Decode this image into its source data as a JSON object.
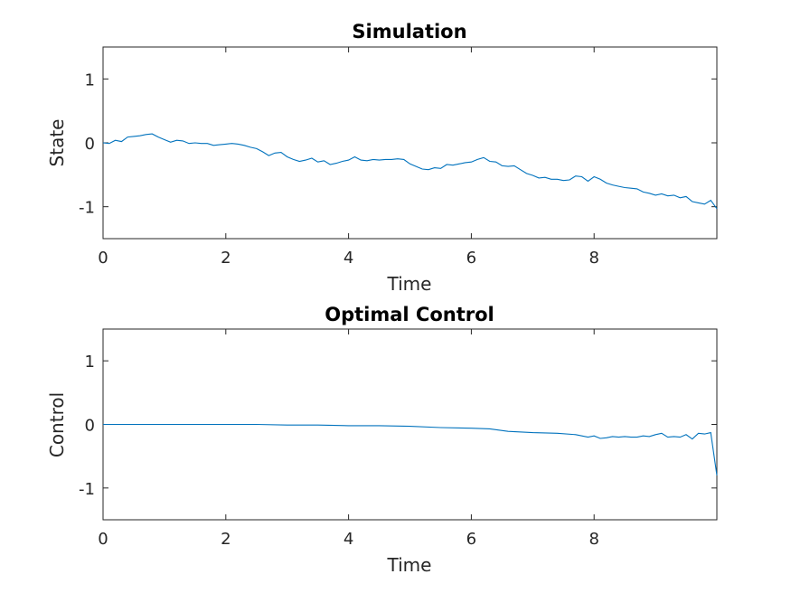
{
  "chart_data": [
    {
      "type": "line",
      "title": "Simulation",
      "xlabel": "Time",
      "ylabel": "State",
      "xlim": [
        0,
        10
      ],
      "ylim": [
        -1.5,
        1.5
      ],
      "xticks": [
        0,
        2,
        4,
        6,
        8
      ],
      "yticks": [
        1,
        0,
        -1
      ],
      "xtick_labels": [
        "0",
        "2",
        "4",
        "6",
        "8"
      ],
      "ytick_labels": [
        "1",
        "0",
        "-1"
      ],
      "grid": false,
      "color": "#0072BD",
      "series": [
        {
          "x": [
            0,
            0.1,
            0.2,
            0.3,
            0.4,
            0.5,
            0.6,
            0.7,
            0.8,
            0.9,
            1.0,
            1.1,
            1.2,
            1.3,
            1.4,
            1.5,
            1.6,
            1.7,
            1.8,
            1.9,
            2.0,
            2.1,
            2.2,
            2.3,
            2.4,
            2.5,
            2.6,
            2.7,
            2.8,
            2.9,
            3.0,
            3.1,
            3.2,
            3.3,
            3.4,
            3.5,
            3.6,
            3.7,
            3.8,
            3.9,
            4.0,
            4.1,
            4.2,
            4.3,
            4.4,
            4.5,
            4.6,
            4.7,
            4.8,
            4.9,
            5.0,
            5.1,
            5.2,
            5.3,
            5.4,
            5.5,
            5.6,
            5.7,
            5.8,
            5.9,
            6.0,
            6.1,
            6.2,
            6.3,
            6.4,
            6.5,
            6.6,
            6.7,
            6.8,
            6.9,
            7.0,
            7.1,
            7.2,
            7.3,
            7.4,
            7.5,
            7.6,
            7.7,
            7.8,
            7.9,
            8.0,
            8.1,
            8.2,
            8.3,
            8.4,
            8.5,
            8.6,
            8.7,
            8.8,
            8.9,
            9.0,
            9.1,
            9.2,
            9.3,
            9.4,
            9.5,
            9.6,
            9.7,
            9.8,
            9.9,
            10.0
          ],
          "y": [
            0.0,
            -0.01,
            0.04,
            0.02,
            0.09,
            0.1,
            0.11,
            0.13,
            0.14,
            0.09,
            0.05,
            0.01,
            0.04,
            0.03,
            -0.01,
            0.0,
            -0.01,
            -0.01,
            -0.04,
            -0.03,
            -0.02,
            -0.01,
            -0.02,
            -0.04,
            -0.07,
            -0.09,
            -0.14,
            -0.2,
            -0.16,
            -0.15,
            -0.22,
            -0.26,
            -0.29,
            -0.27,
            -0.24,
            -0.3,
            -0.28,
            -0.34,
            -0.32,
            -0.29,
            -0.27,
            -0.22,
            -0.27,
            -0.28,
            -0.26,
            -0.27,
            -0.26,
            -0.26,
            -0.25,
            -0.26,
            -0.33,
            -0.37,
            -0.41,
            -0.42,
            -0.39,
            -0.4,
            -0.34,
            -0.35,
            -0.33,
            -0.31,
            -0.3,
            -0.26,
            -0.23,
            -0.29,
            -0.3,
            -0.36,
            -0.37,
            -0.36,
            -0.42,
            -0.48,
            -0.51,
            -0.55,
            -0.54,
            -0.57,
            -0.57,
            -0.59,
            -0.58,
            -0.52,
            -0.53,
            -0.6,
            -0.53,
            -0.57,
            -0.63,
            -0.66,
            -0.68,
            -0.7,
            -0.71,
            -0.72,
            -0.77,
            -0.79,
            -0.82,
            -0.8,
            -0.83,
            -0.82,
            -0.86,
            -0.84,
            -0.92,
            -0.94,
            -0.96,
            -0.9,
            -1.03
          ]
        }
      ]
    },
    {
      "type": "line",
      "title": "Optimal Control",
      "xlabel": "Time",
      "ylabel": "Control",
      "xlim": [
        0,
        10
      ],
      "ylim": [
        -1.5,
        1.5
      ],
      "xticks": [
        0,
        2,
        4,
        6,
        8
      ],
      "yticks": [
        1,
        0,
        -1
      ],
      "xtick_labels": [
        "0",
        "2",
        "4",
        "6",
        "8"
      ],
      "ytick_labels": [
        "1",
        "0",
        "-1"
      ],
      "grid": false,
      "color": "#0072BD",
      "series": [
        {
          "x": [
            0,
            0.5,
            1.0,
            1.5,
            2.0,
            2.5,
            3.0,
            3.5,
            4.0,
            4.5,
            5.0,
            5.5,
            6.0,
            6.3,
            6.6,
            7.0,
            7.4,
            7.7,
            7.9,
            8.0,
            8.1,
            8.2,
            8.3,
            8.4,
            8.5,
            8.6,
            8.7,
            8.8,
            8.9,
            9.0,
            9.1,
            9.2,
            9.3,
            9.4,
            9.5,
            9.6,
            9.7,
            9.8,
            9.9,
            10.0
          ],
          "y": [
            0.0,
            0.0,
            0.0,
            0.0,
            0.0,
            0.0,
            -0.01,
            -0.01,
            -0.02,
            -0.02,
            -0.03,
            -0.05,
            -0.06,
            -0.07,
            -0.11,
            -0.13,
            -0.14,
            -0.16,
            -0.2,
            -0.18,
            -0.22,
            -0.21,
            -0.19,
            -0.2,
            -0.19,
            -0.2,
            -0.2,
            -0.18,
            -0.19,
            -0.16,
            -0.14,
            -0.2,
            -0.19,
            -0.2,
            -0.16,
            -0.23,
            -0.14,
            -0.15,
            -0.13,
            -0.8
          ]
        }
      ]
    }
  ]
}
